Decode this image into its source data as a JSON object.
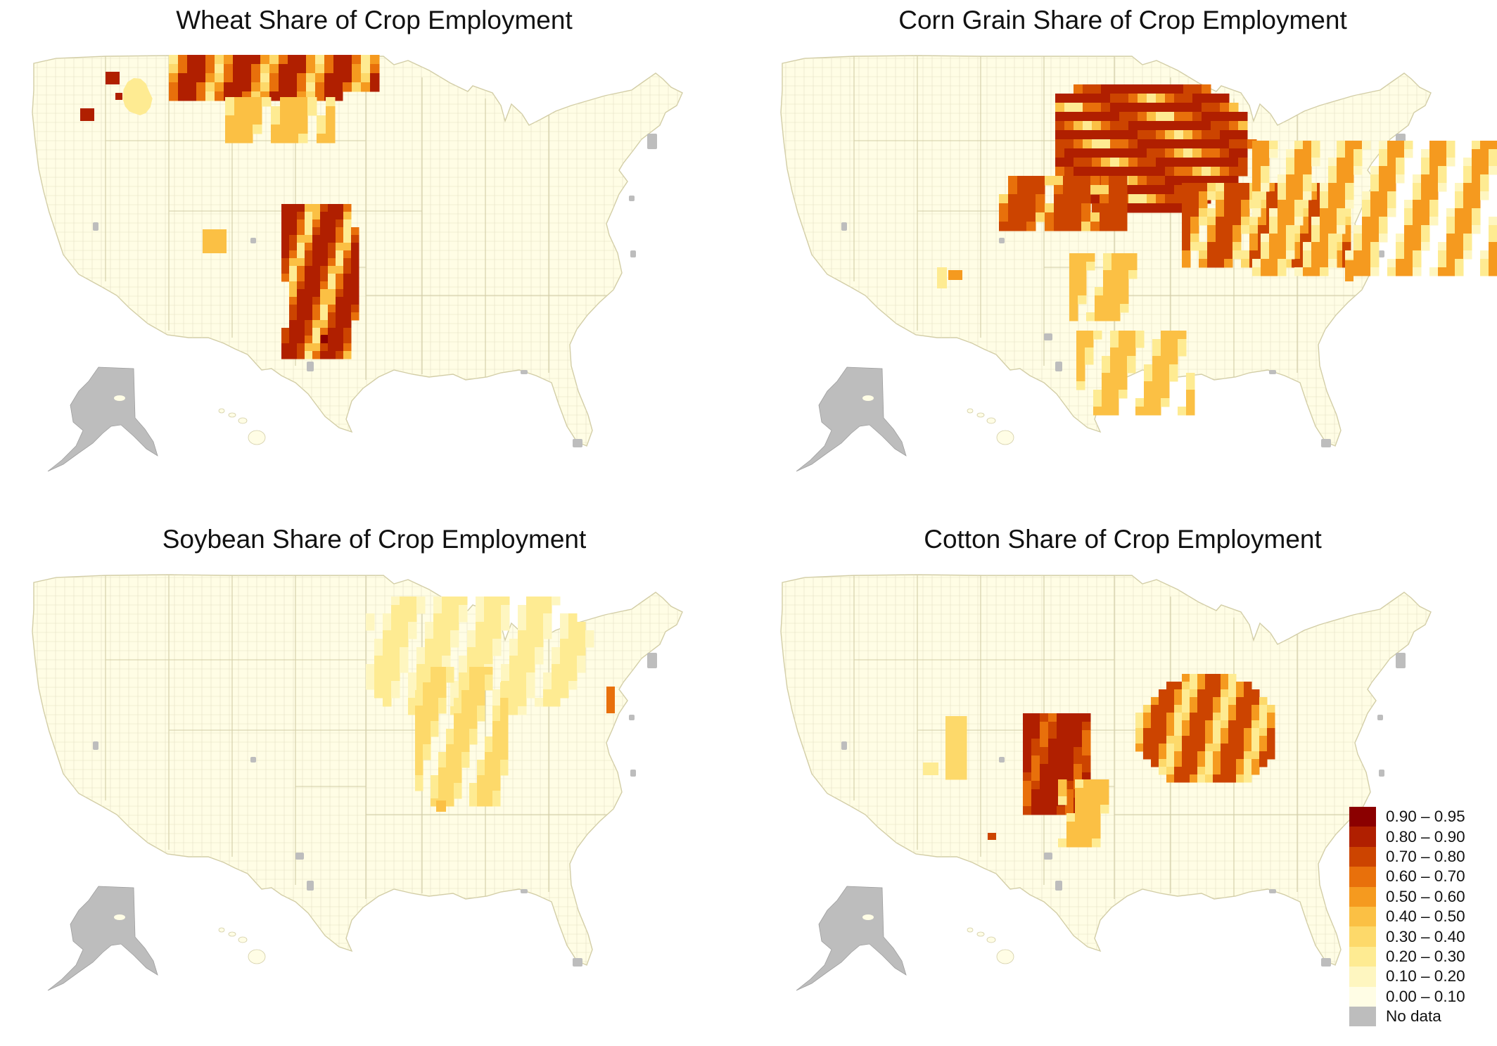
{
  "figure": {
    "panels": [
      {
        "id": "wheat",
        "title": "Wheat Share of Crop Employment"
      },
      {
        "id": "corn",
        "title": "Corn Grain Share of Crop Employment"
      },
      {
        "id": "soybean",
        "title": "Soybean Share of Crop Employment"
      },
      {
        "id": "cotton",
        "title": "Cotton Share of Crop Employment"
      }
    ]
  },
  "legend": {
    "items": [
      {
        "label": "0.90 – 0.95",
        "color": "#8b0000"
      },
      {
        "label": "0.80 – 0.90",
        "color": "#b01f00"
      },
      {
        "label": "0.70 – 0.80",
        "color": "#cc4400"
      },
      {
        "label": "0.60 – 0.70",
        "color": "#e8700b"
      },
      {
        "label": "0.50 – 0.60",
        "color": "#f59a1f"
      },
      {
        "label": "0.40 – 0.50",
        "color": "#fbc044"
      },
      {
        "label": "0.30 – 0.40",
        "color": "#fdd96a"
      },
      {
        "label": "0.20 – 0.30",
        "color": "#feeb92"
      },
      {
        "label": "0.10 – 0.20",
        "color": "#fef6c0"
      },
      {
        "label": "0.00 – 0.10",
        "color": "#fffde5"
      },
      {
        "label": "No data",
        "color": "#bdbdbd"
      }
    ]
  },
  "colors": {
    "base_fill": "#fffde5",
    "county_line": "#e4e0c4",
    "state_line": "#d2cda6",
    "no_data": "#bdbdbd"
  }
}
